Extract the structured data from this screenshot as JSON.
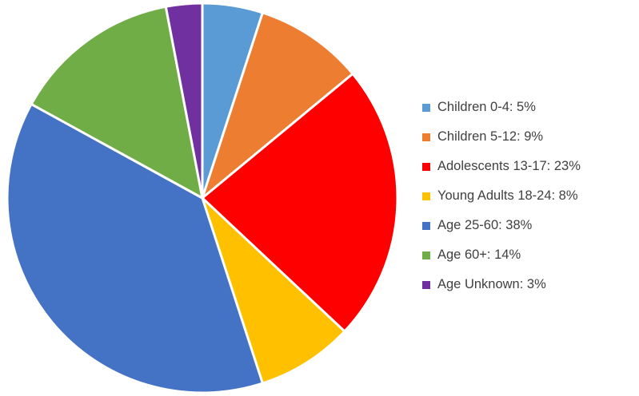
{
  "chart_data": {
    "type": "pie",
    "title": "",
    "start_angle_deg": 0,
    "direction": "clockwise",
    "legend_position": "right",
    "slices": [
      {
        "label": "Children 0-4: 5%",
        "category": "Children 0-4",
        "value": 5,
        "color": "#5B9BD5"
      },
      {
        "label": "Children 5-12: 9%",
        "category": "Children 5-12",
        "value": 9,
        "color": "#ED7D31"
      },
      {
        "label": "Adolescents 13-17: 23%",
        "category": "Adolescents 13-17",
        "value": 23,
        "color": "#FF0000"
      },
      {
        "label": "Young Adults 18-24: 8%",
        "category": "Young Adults 18-24",
        "value": 8,
        "color": "#FFC000"
      },
      {
        "label": "Age 25-60: 38%",
        "category": "Age 25-60",
        "value": 38,
        "color": "#4472C4"
      },
      {
        "label": "Age 60+: 14%",
        "category": "Age 60+",
        "value": 14,
        "color": "#70AD47"
      },
      {
        "label": "Age Unknown: 3%",
        "category": "Age Unknown",
        "value": 3,
        "color": "#7030A0"
      }
    ]
  }
}
